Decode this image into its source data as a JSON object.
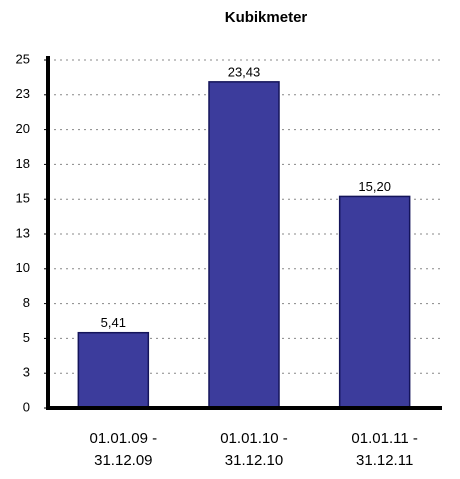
{
  "chart_data": {
    "type": "bar",
    "title": "Kubikmeter",
    "categories": [
      "01.01.09 -\n31.12.09",
      "01.01.10 -\n31.12.10",
      "01.01.11 -\n31.12.11"
    ],
    "values": [
      5.41,
      23.43,
      15.2
    ],
    "value_labels": [
      "5,41",
      "23,43",
      "15,20"
    ],
    "color": "#3c3c9c",
    "ylim": [
      0,
      25
    ],
    "yticks": [
      0,
      {
        "value": 2.5,
        "label": "3"
      },
      5,
      {
        "value": 7.5,
        "label": "8"
      },
      10,
      {
        "value": 12.5,
        "label": "13"
      },
      15,
      {
        "value": 17.5,
        "label": "18"
      },
      20,
      {
        "value": 22.5,
        "label": "23"
      },
      25
    ],
    "grid": true
  }
}
